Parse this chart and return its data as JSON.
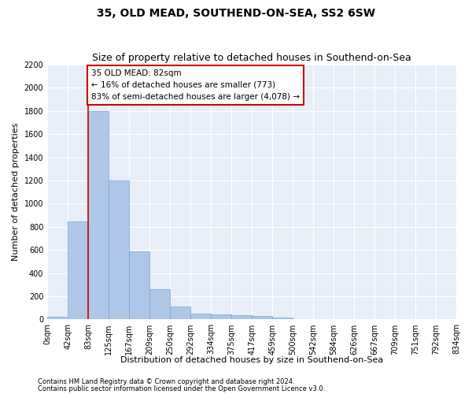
{
  "title": "35, OLD MEAD, SOUTHEND-ON-SEA, SS2 6SW",
  "subtitle": "Size of property relative to detached houses in Southend-on-Sea",
  "xlabel": "Distribution of detached houses by size in Southend-on-Sea",
  "ylabel": "Number of detached properties",
  "bin_labels": [
    "0sqm",
    "42sqm",
    "83sqm",
    "125sqm",
    "167sqm",
    "209sqm",
    "250sqm",
    "292sqm",
    "334sqm",
    "375sqm",
    "417sqm",
    "459sqm",
    "500sqm",
    "542sqm",
    "584sqm",
    "626sqm",
    "667sqm",
    "709sqm",
    "751sqm",
    "792sqm",
    "834sqm"
  ],
  "bar_values": [
    25,
    850,
    1800,
    1200,
    590,
    260,
    115,
    50,
    47,
    35,
    28,
    18,
    0,
    0,
    0,
    0,
    0,
    0,
    0,
    0
  ],
  "bar_color": "#aec6e8",
  "bar_edge_color": "#6aaad4",
  "annotation_text": "35 OLD MEAD: 82sqm\n← 16% of detached houses are smaller (773)\n83% of semi-detached houses are larger (4,078) →",
  "annotation_box_color": "#ffffff",
  "annotation_box_edge_color": "#cc0000",
  "vertical_line_color": "#cc0000",
  "ylim": [
    0,
    2200
  ],
  "yticks": [
    0,
    200,
    400,
    600,
    800,
    1000,
    1200,
    1400,
    1600,
    1800,
    2000,
    2200
  ],
  "footnote1": "Contains HM Land Registry data © Crown copyright and database right 2024.",
  "footnote2": "Contains public sector information licensed under the Open Government Licence v3.0.",
  "background_color": "#e8eef8",
  "grid_color": "#ffffff",
  "fig_background": "#ffffff",
  "title_fontsize": 10,
  "subtitle_fontsize": 9,
  "axis_label_fontsize": 8,
  "tick_fontsize": 7,
  "annotation_fontsize": 7.5,
  "footnote_fontsize": 6
}
